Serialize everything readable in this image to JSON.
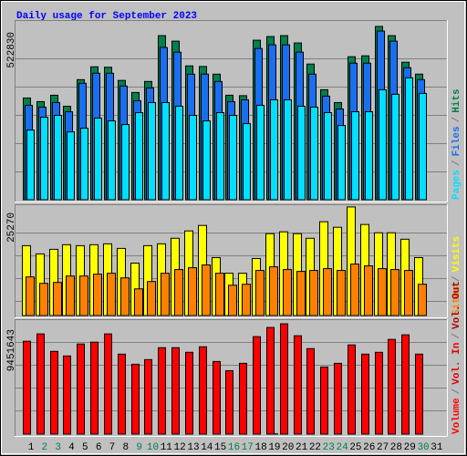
{
  "chart_data": [
    {
      "type": "bar",
      "title": "Daily usage for September 2023",
      "ylim": [
        0,
        542100
      ],
      "yticks": [
        522830
      ],
      "separator": "/",
      "series": [
        {
          "name": "Pages",
          "color": "#00e0ff",
          "values": [
            210200,
            248900,
            254500,
            204700,
            215700,
            246200,
            237900,
            226800,
            262800,
            293200,
            293200,
            282100,
            254500,
            237900,
            262800,
            254500,
            229600,
            284900,
            301500,
            301500,
            282100,
            279400,
            262800,
            224000,
            265500,
            265500,
            331900,
            318100,
            367900,
            320900,
            null
          ]
        },
        {
          "name": "Files",
          "color": "#1a6ef0",
          "values": [
            284900,
            279400,
            293200,
            265500,
            351300,
            381700,
            381700,
            343000,
            298700,
            337500,
            459200,
            445300,
            378900,
            378900,
            356800,
            296000,
            301500,
            456400,
            467500,
            467500,
            445300,
            378900,
            312600,
            273800,
            412100,
            412100,
            508900,
            478500,
            398300,
            362300,
            null
          ]
        },
        {
          "name": "Hits",
          "color": "#00804a",
          "values": [
            307000,
            296000,
            315300,
            282100,
            362300,
            401100,
            399800,
            360000,
            323600,
            356800,
            495100,
            478500,
            403800,
            402000,
            378900,
            315300,
            314000,
            481300,
            492300,
            495100,
            473000,
            409400,
            331900,
            293200,
            431500,
            434200,
            522830,
            495100,
            414900,
            378900,
            null
          ]
        }
      ]
    },
    {
      "type": "bar",
      "ylim": [
        0,
        25890
      ],
      "yticks": [
        25270
      ],
      "separator": "/",
      "series": [
        {
          "name": "Sites",
          "color": "#ff8000",
          "values": [
            8990,
            7490,
            7700,
            9200,
            9200,
            9630,
            9840,
            8770,
            6210,
            7920,
            9840,
            10700,
            11130,
            11770,
            9840,
            7060,
            7280,
            10490,
            11340,
            10700,
            10270,
            10490,
            10910,
            10490,
            11980,
            11560,
            10910,
            10700,
            10490,
            7280,
            null
          ]
        },
        {
          "name": "Visits",
          "color": "#ffff00",
          "values": [
            16260,
            14340,
            15410,
            16480,
            16260,
            16480,
            16690,
            15620,
            12200,
            16260,
            16690,
            17980,
            19690,
            20970,
            13480,
            9840,
            9840,
            13270,
            19050,
            19480,
            19050,
            17980,
            21830,
            20540,
            25270,
            21190,
            19260,
            19260,
            17760,
            13480,
            null
          ]
        }
      ]
    },
    {
      "type": "bar",
      "ylim": [
        0,
        9845500
      ],
      "yticks": [
        9451643
      ],
      "separator": "/",
      "categories": [
        "1",
        "2",
        "3",
        "4",
        "5",
        "6",
        "7",
        "8",
        "9",
        "10",
        "11",
        "12",
        "13",
        "14",
        "15",
        "16",
        "17",
        "18",
        "19",
        "20",
        "21",
        "22",
        "23",
        "24",
        "25",
        "26",
        "27",
        "28",
        "29",
        "30",
        "31"
      ],
      "label_colors": [
        "#000000",
        "#00804a",
        "#00804a",
        "#000000",
        "#000000",
        "#000000",
        "#000000",
        "#000000",
        "#00804a",
        "#00804a",
        "#000000",
        "#000000",
        "#000000",
        "#000000",
        "#000000",
        "#00804a",
        "#00804a",
        "#000000",
        "#000000",
        "#000000",
        "#000000",
        "#000000",
        "#00804a",
        "#00804a",
        "#000000",
        "#000000",
        "#000000",
        "#000000",
        "#000000",
        "#00804a",
        "#000000"
      ],
      "series": [
        {
          "name": "Volume",
          "color": "#ff0000",
          "values": [
            7955000,
            8585000,
            7089000,
            6695000,
            7719000,
            7876000,
            8585000,
            6852000,
            5986000,
            6380000,
            7404000,
            7404000,
            7010000,
            7483000,
            6222000,
            5435000,
            6065000,
            8349000,
            9137000,
            9451643,
            8428000,
            7325000,
            5750000,
            6065000,
            7640000,
            6852000,
            7010000,
            8113000,
            8506000,
            6852000,
            null
          ]
        },
        {
          "name": "Vol. In",
          "color": "#e00000",
          "values": [
            0,
            0,
            0,
            0,
            0,
            0,
            0,
            0,
            0,
            0,
            0,
            0,
            0,
            0,
            0,
            0,
            0,
            0,
            20000,
            0,
            0,
            0,
            0,
            0,
            0,
            0,
            0,
            0,
            0,
            0,
            null
          ]
        },
        {
          "name": "Vol. Out",
          "color": "#b00000",
          "values": [
            0,
            0,
            0,
            0,
            0,
            0,
            0,
            0,
            0,
            0,
            0,
            0,
            0,
            0,
            0,
            0,
            0,
            0,
            20000,
            0,
            0,
            0,
            0,
            0,
            0,
            0,
            0,
            0,
            0,
            0,
            null
          ]
        }
      ]
    }
  ]
}
